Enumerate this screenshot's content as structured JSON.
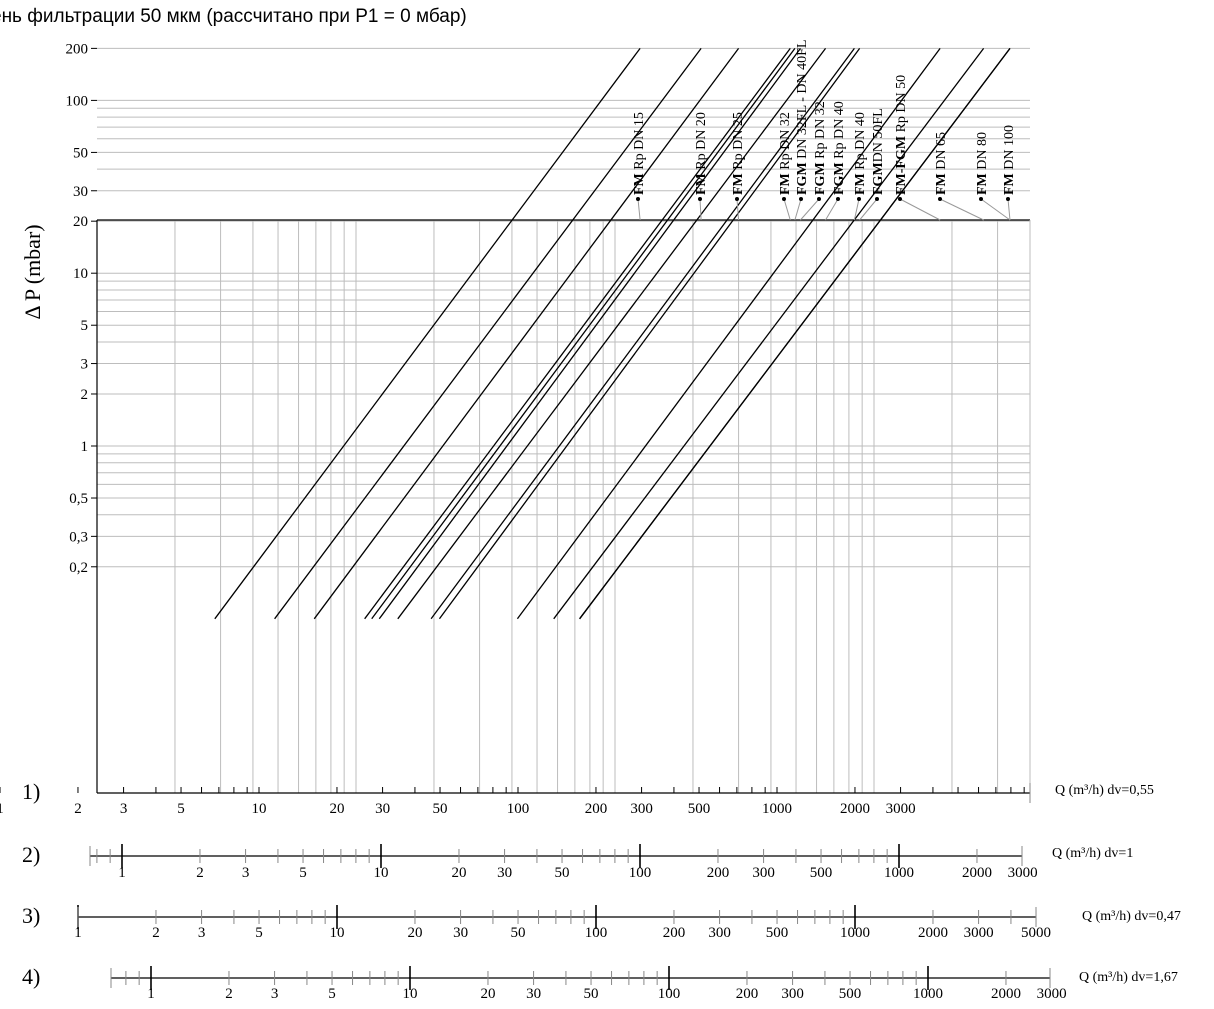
{
  "title": "ень фильтрации 50 мкм (рассчитано при P1 = 0 мбар)",
  "chart_data": {
    "type": "line",
    "title": "ень фильтрации 50 мкм (рассчитано при P1 = 0 мбар)",
    "ylabel": "Δ P (mbar)",
    "y_scale": "log",
    "x_scale": "log",
    "ylim": [
      0.1,
      200
    ],
    "xlim": [
      1,
      3700
    ],
    "grid": true,
    "y_ticks": [
      {
        "value": 200,
        "label": "200"
      },
      {
        "value": 100,
        "label": "100"
      },
      {
        "value": 50,
        "label": "50"
      },
      {
        "value": 30,
        "label": "30"
      },
      {
        "value": 20,
        "label": "20"
      },
      {
        "value": 10,
        "label": "10"
      },
      {
        "value": 5,
        "label": "5"
      },
      {
        "value": 3,
        "label": "3"
      },
      {
        "value": 2,
        "label": "2"
      },
      {
        "value": 1,
        "label": "1"
      },
      {
        "value": 0.5,
        "label": "0,5"
      },
      {
        "value": 0.3,
        "label": "0,3"
      },
      {
        "value": 0.2,
        "label": "0,2"
      }
    ],
    "series": [
      {
        "name": "FM Rp DN 15",
        "bold": "FM",
        "rest": " Rp DN 15",
        "x": [
          2.85,
          125
        ],
        "y": [
          0.1,
          200
        ]
      },
      {
        "name": "FM Rp DN 20",
        "bold": "FM",
        "rest": " Rp DN 20",
        "x": [
          4.85,
          215
        ],
        "y": [
          0.1,
          200
        ]
      },
      {
        "name": "FM Rp DN 25",
        "bold": "FM",
        "rest": " Rp DN 25",
        "x": [
          6.9,
          300
        ],
        "y": [
          0.1,
          200
        ]
      },
      {
        "name": "FM Rp DN 32",
        "bold": "FM",
        "rest": " Rp DN 32",
        "x": [
          10.8,
          475
        ],
        "y": [
          0.1,
          200
        ]
      },
      {
        "name": "FGM DN 32FL - DN 40FL",
        "bold": "FGM",
        "rest": " DN 32FL - DN 40FL",
        "x": [
          11.5,
          495
        ],
        "y": [
          0.1,
          200
        ]
      },
      {
        "name": "FGM Rp DN 32",
        "bold": "FGM",
        "rest": " Rp DN 32",
        "x": [
          12.3,
          520
        ],
        "y": [
          0.1,
          200
        ]
      },
      {
        "name": "FGM Rp DN 40",
        "bold": "FGM",
        "rest": " Rp DN 40",
        "x": [
          14.5,
          650
        ],
        "y": [
          0.1,
          200
        ]
      },
      {
        "name": "FM Rp DN 40",
        "bold": "FM",
        "rest": " Rp DN 40",
        "x": [
          19.5,
          840
        ],
        "y": [
          0.1,
          200
        ]
      },
      {
        "name": "FGM DN 50FL",
        "bold": "FGM",
        "rest": "DN 50FL",
        "x": [
          21,
          880
        ],
        "y": [
          0.1,
          200
        ]
      },
      {
        "name": "FM-FGM Rp DN 50",
        "bold": "FM-FGM",
        "rest": " Rp DN 50",
        "x": [
          42,
          1800
        ],
        "y": [
          0.1,
          200
        ]
      },
      {
        "name": "FM DN 65",
        "bold": "FM",
        "rest": " DN 65",
        "x": [
          58,
          2650
        ],
        "y": [
          0.1,
          200
        ]
      },
      {
        "name": "FM DN 80",
        "bold": "FM",
        "rest": " DN 80",
        "x": [
          73,
          3350
        ],
        "y": [
          0.1,
          200
        ]
      },
      {
        "name": "FM DN 100",
        "bold": "FM",
        "rest": " DN 100",
        "x": [
          73,
          3350
        ],
        "y": [
          0.1,
          200
        ]
      }
    ],
    "x_scales": [
      {
        "label": "1)",
        "axis_label": "Q (m³/h)  dv",
        "dv": "=0,55",
        "labels": [
          "1",
          "2",
          "3",
          "5",
          "10",
          "20",
          "30",
          "50",
          "100",
          "200",
          "300",
          "500",
          "1000",
          "2000",
          "3000"
        ]
      },
      {
        "label": "2)",
        "axis_label": "Q (m³/h)  dv",
        "dv": "=1",
        "labels": [
          "1",
          "2",
          "3",
          "5",
          "10",
          "20",
          "30",
          "50",
          "100",
          "200",
          "300",
          "500",
          "1000",
          "2000",
          "3000"
        ]
      },
      {
        "label": "3)",
        "axis_label": "Q (m³/h)  dv",
        "dv": "=0,47",
        "labels": [
          "1",
          "2",
          "3",
          "5",
          "10",
          "20",
          "30",
          "50",
          "100",
          "200",
          "300",
          "500",
          "1000",
          "2000",
          "3000",
          "5000"
        ]
      },
      {
        "label": "4)",
        "axis_label": "Q (m³/h)  dv",
        "dv": "=1,67",
        "labels": [
          "1",
          "2",
          "3",
          "5",
          "10",
          "20",
          "30",
          "50",
          "100",
          "200",
          "300",
          "500",
          "1000",
          "2000",
          "3000"
        ]
      }
    ]
  }
}
